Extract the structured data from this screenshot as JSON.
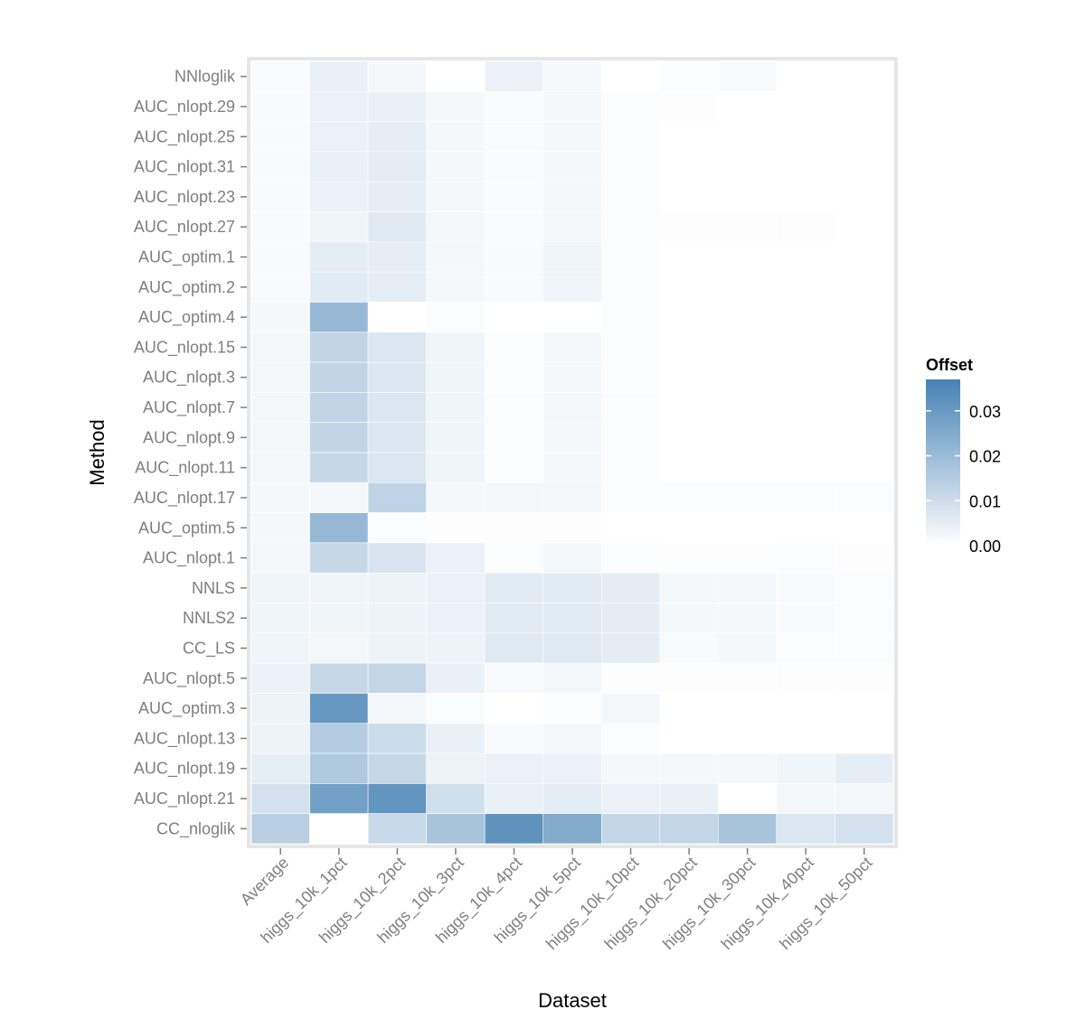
{
  "chart_data": {
    "type": "heatmap",
    "xlabel": "Dataset",
    "ylabel": "Method",
    "x_categories": [
      "Average",
      "higgs_10k_1pct",
      "higgs_10k_2pct",
      "higgs_10k_3pct",
      "higgs_10k_4pct",
      "higgs_10k_5pct",
      "higgs_10k_10pct",
      "higgs_10k_20pct",
      "higgs_10k_30pct",
      "higgs_10k_40pct",
      "higgs_10k_50pct"
    ],
    "y_categories": [
      "NNloglik",
      "AUC_nlopt.29",
      "AUC_nlopt.25",
      "AUC_nlopt.31",
      "AUC_nlopt.23",
      "AUC_nlopt.27",
      "AUC_optim.1",
      "AUC_optim.2",
      "AUC_optim.4",
      "AUC_nlopt.15",
      "AUC_nlopt.3",
      "AUC_nlopt.7",
      "AUC_nlopt.9",
      "AUC_nlopt.11",
      "AUC_nlopt.17",
      "AUC_optim.5",
      "AUC_nlopt.1",
      "NNLS",
      "NNLS2",
      "CC_LS",
      "AUC_nlopt.5",
      "AUC_optim.3",
      "AUC_nlopt.13",
      "AUC_nlopt.19",
      "AUC_nlopt.21",
      "CC_nloglik"
    ],
    "values": [
      [
        0.0013,
        0.0045,
        0.002,
        null,
        0.004,
        0.0018,
        null,
        0.0008,
        0.0015,
        0.0,
        0.0
      ],
      [
        0.0015,
        0.004,
        0.0045,
        0.002,
        0.0012,
        0.002,
        0.001,
        0.0005,
        0.0,
        0.0,
        0.0
      ],
      [
        0.0015,
        0.004,
        0.005,
        0.002,
        0.0012,
        0.002,
        0.001,
        0.0,
        0.0,
        0.0,
        0.0
      ],
      [
        0.0015,
        0.0045,
        0.0055,
        0.002,
        0.0012,
        0.002,
        0.001,
        0.0,
        0.0,
        0.0,
        0.0
      ],
      [
        0.0015,
        0.004,
        0.005,
        0.002,
        0.0012,
        0.0025,
        0.001,
        0.0,
        0.0,
        0.0,
        0.0
      ],
      [
        0.0015,
        0.003,
        0.0065,
        0.0025,
        0.0012,
        0.0025,
        0.001,
        0.0005,
        0.0005,
        0.0005,
        0.0
      ],
      [
        0.0015,
        0.0055,
        0.005,
        0.002,
        0.0015,
        0.003,
        0.001,
        0.0,
        0.0,
        0.0,
        0.0
      ],
      [
        0.0015,
        0.006,
        0.005,
        0.002,
        0.0015,
        0.003,
        0.001,
        0.0,
        0.0,
        0.0,
        0.0
      ],
      [
        0.002,
        0.021,
        null,
        0.001,
        null,
        null,
        0.001,
        0.0,
        0.0,
        0.0,
        0.0
      ],
      [
        0.0025,
        0.0125,
        0.0075,
        0.003,
        0.001,
        0.002,
        0.001,
        0.0,
        0.0,
        0.0,
        0.0
      ],
      [
        0.0025,
        0.0125,
        0.0075,
        0.003,
        0.001,
        0.002,
        0.001,
        0.0,
        0.0,
        0.0,
        0.0
      ],
      [
        0.0025,
        0.0125,
        0.0075,
        0.003,
        0.001,
        0.002,
        0.001,
        0.0,
        0.0,
        0.0,
        0.0
      ],
      [
        0.0025,
        0.0125,
        0.0075,
        0.003,
        0.001,
        0.002,
        0.001,
        0.0,
        0.0,
        0.0,
        0.0
      ],
      [
        0.0025,
        0.0115,
        0.0075,
        0.003,
        0.001,
        0.002,
        0.001,
        0.0,
        0.0,
        0.0,
        0.0
      ],
      [
        0.002,
        0.0025,
        0.013,
        0.002,
        0.0025,
        0.0025,
        0.001,
        0.001,
        0.001,
        0.001,
        0.001
      ],
      [
        0.002,
        0.021,
        0.001,
        0.0005,
        0.0005,
        0.0005,
        0.0,
        0.0,
        0.0,
        0.0,
        0.0
      ],
      [
        0.0025,
        0.0115,
        0.008,
        0.004,
        0.001,
        0.0025,
        0.001,
        0.0005,
        0.0005,
        0.001,
        0.0005
      ],
      [
        0.003,
        0.003,
        0.0035,
        0.004,
        0.006,
        0.006,
        0.0055,
        0.002,
        0.002,
        0.0015,
        0.001
      ],
      [
        0.003,
        0.003,
        0.0035,
        0.004,
        0.006,
        0.006,
        0.0055,
        0.002,
        0.002,
        0.0015,
        0.001
      ],
      [
        0.003,
        0.0025,
        0.0035,
        0.0035,
        0.0065,
        0.0065,
        0.0055,
        0.0015,
        0.002,
        0.001,
        0.001
      ],
      [
        0.004,
        0.0115,
        0.012,
        0.0045,
        0.0015,
        0.0025,
        0.0005,
        0.0005,
        0.0005,
        0.0005,
        0.0005
      ],
      [
        0.0035,
        0.0305,
        0.0025,
        0.001,
        null,
        0.001,
        0.0025,
        0.0,
        0.0,
        0.0,
        0.0
      ],
      [
        0.0035,
        0.015,
        0.0105,
        0.0045,
        0.0015,
        0.0025,
        0.001,
        0.0,
        0.0,
        0.0,
        0.0
      ],
      [
        0.005,
        0.016,
        0.0115,
        0.0035,
        0.004,
        0.004,
        0.002,
        0.002,
        0.002,
        0.003,
        0.005
      ],
      [
        0.009,
        0.028,
        0.0315,
        0.0095,
        0.0045,
        0.0055,
        0.004,
        0.0045,
        null,
        0.0025,
        0.0025
      ],
      [
        0.014,
        null,
        0.011,
        0.0175,
        0.032,
        0.025,
        0.012,
        0.012,
        0.0175,
        0.0075,
        0.009
      ]
    ],
    "color_scale": {
      "title": "Offset",
      "low_color": "#ffffff",
      "high_color": "#4682b4",
      "min": 0,
      "max": 0.037,
      "ticks": [
        0.0,
        0.01,
        0.02,
        0.03
      ],
      "tick_labels": [
        "0.00",
        "0.01",
        "0.02",
        "0.03"
      ]
    },
    "background": "#ffffff",
    "panel_background": "#fafafa",
    "grid": true,
    "legend_position": "right"
  }
}
